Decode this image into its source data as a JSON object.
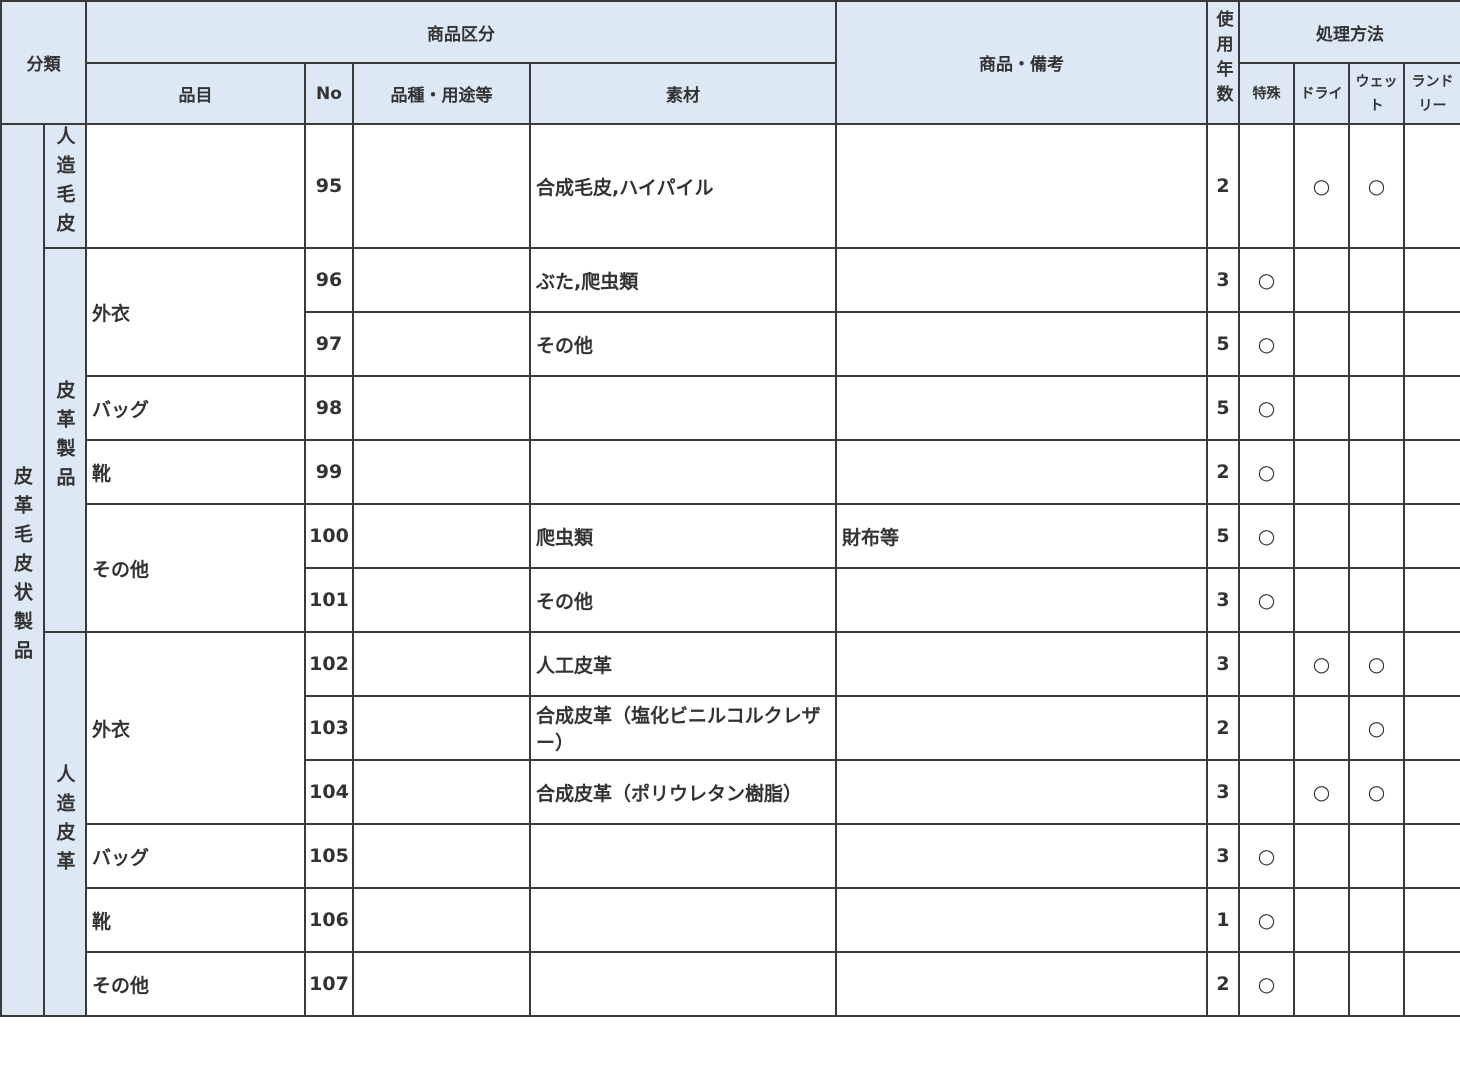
{
  "header": {
    "bunrui": "分類",
    "shohin_kubun": "商品区分",
    "hinmoku": "品目",
    "no": "No",
    "hinshu": "品種・用途等",
    "sozai": "素材",
    "biko": "商品・備考",
    "nensu": "使用年数",
    "shori": "処理方法",
    "tokushu": "特殊",
    "dry": "ドライ",
    "wet": "ウェット",
    "laundry": "ランドリー"
  },
  "category": "皮革毛皮状製品",
  "rows": [
    {
      "sub": "人造毛皮",
      "subspan": 1,
      "item": "",
      "itemspan": 1,
      "no": "95",
      "hinshu": "",
      "sozai": "合成毛皮,ハイパイル",
      "biko": "",
      "years": "2",
      "marks": [
        "",
        "○",
        "○",
        ""
      ]
    },
    {
      "sub": "皮革製品",
      "subspan": 6,
      "item": "外衣",
      "itemspan": 2,
      "no": "96",
      "hinshu": "",
      "sozai": "ぶた,爬虫類",
      "biko": "",
      "years": "3",
      "marks": [
        "○",
        "",
        "",
        ""
      ]
    },
    {
      "no": "97",
      "hinshu": "",
      "sozai": "その他",
      "biko": "",
      "years": "5",
      "marks": [
        "○",
        "",
        "",
        ""
      ]
    },
    {
      "item": "バッグ",
      "itemspan": 1,
      "no": "98",
      "hinshu": "",
      "sozai": "",
      "biko": "",
      "years": "5",
      "marks": [
        "○",
        "",
        "",
        ""
      ]
    },
    {
      "item": "靴",
      "itemspan": 1,
      "no": "99",
      "hinshu": "",
      "sozai": "",
      "biko": "",
      "years": "2",
      "marks": [
        "○",
        "",
        "",
        ""
      ]
    },
    {
      "item": "その他",
      "itemspan": 2,
      "no": "100",
      "hinshu": "",
      "sozai": "爬虫類",
      "biko": "財布等",
      "years": "5",
      "marks": [
        "○",
        "",
        "",
        ""
      ]
    },
    {
      "no": "101",
      "hinshu": "",
      "sozai": "その他",
      "biko": "",
      "years": "3",
      "marks": [
        "○",
        "",
        "",
        ""
      ]
    },
    {
      "sub": "人造皮革",
      "subspan": 6,
      "item": "外衣",
      "itemspan": 3,
      "no": "102",
      "hinshu": "",
      "sozai": "人工皮革",
      "biko": "",
      "years": "3",
      "marks": [
        "",
        "○",
        "○",
        ""
      ]
    },
    {
      "no": "103",
      "hinshu": "",
      "sozai": "合成皮革（塩化ビニルコルクレザー）",
      "biko": "",
      "years": "2",
      "marks": [
        "",
        "",
        "○",
        ""
      ]
    },
    {
      "no": "104",
      "hinshu": "",
      "sozai": "合成皮革（ポリウレタン樹脂）",
      "biko": "",
      "years": "3",
      "marks": [
        "",
        "○",
        "○",
        ""
      ]
    },
    {
      "item": "バッグ",
      "itemspan": 1,
      "no": "105",
      "hinshu": "",
      "sozai": "",
      "biko": "",
      "years": "3",
      "marks": [
        "○",
        "",
        "",
        ""
      ]
    },
    {
      "item": "靴",
      "itemspan": 1,
      "no": "106",
      "hinshu": "",
      "sozai": "",
      "biko": "",
      "years": "1",
      "marks": [
        "○",
        "",
        "",
        ""
      ]
    },
    {
      "item": "その他",
      "itemspan": 1,
      "no": "107",
      "hinshu": "",
      "sozai": "",
      "biko": "",
      "years": "2",
      "marks": [
        "○",
        "",
        "",
        ""
      ]
    }
  ]
}
